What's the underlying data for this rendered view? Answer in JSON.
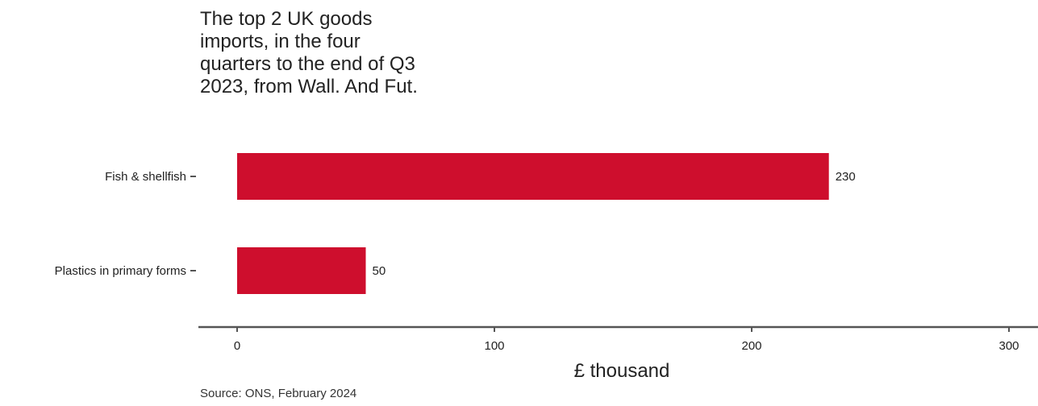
{
  "title": "The top 2 UK goods\nimports, in the four\nquarters to the end of Q3\n2023, from Wall. And Fut.",
  "source": "Source: ONS, February 2024",
  "chart_data": {
    "type": "bar",
    "orientation": "horizontal",
    "title": "The top 2 UK goods imports, in the four quarters to the end of Q3 2023, from Wall. And Fut.",
    "categories": [
      "Fish & shellfish",
      "Plastics in primary forms"
    ],
    "values": [
      230,
      50
    ],
    "data_labels": [
      "230",
      "50"
    ],
    "xlabel": "£ thousand",
    "ylabel": "",
    "xlim": [
      0,
      300
    ],
    "x_ticks": [
      "0",
      "100",
      "200",
      "300"
    ],
    "grid": false,
    "legend": "none",
    "colors": {
      "bar": "#CE0E2D",
      "axis": "#555555",
      "text": "#222222"
    }
  }
}
